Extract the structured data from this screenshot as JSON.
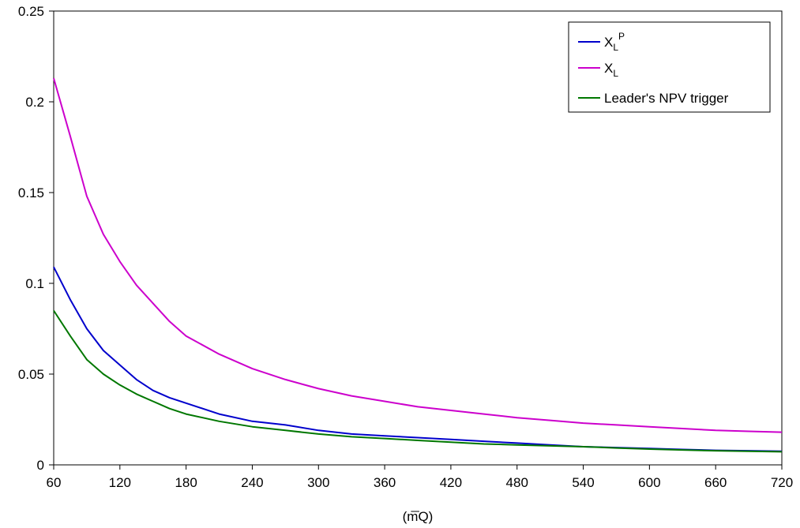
{
  "chart_data": {
    "type": "line",
    "title": "",
    "xlabel": "(mQ)",
    "xlabel_overline": "m",
    "ylabel": "",
    "xlim": [
      60,
      720
    ],
    "ylim": [
      0,
      0.25
    ],
    "x_ticks": [
      "60",
      "120",
      "180",
      "240",
      "300",
      "360",
      "420",
      "480",
      "540",
      "600",
      "660",
      "720"
    ],
    "y_ticks": [
      "0",
      "0.05",
      "0.1",
      "0.15",
      "0.2",
      "0.25"
    ],
    "grid": false,
    "legend_position": "top-right",
    "x": [
      60,
      75,
      90,
      105,
      120,
      135,
      150,
      165,
      180,
      210,
      240,
      270,
      300,
      330,
      360,
      390,
      420,
      450,
      480,
      510,
      540,
      570,
      600,
      630,
      660,
      690,
      720
    ],
    "series": [
      {
        "name_main": "X",
        "name_sub": "L",
        "name_sup": "P",
        "color": "#0000cc",
        "values": [
          0.109,
          0.091,
          0.075,
          0.063,
          0.055,
          0.047,
          0.041,
          0.037,
          0.034,
          0.028,
          0.024,
          0.022,
          0.019,
          0.017,
          0.016,
          0.015,
          0.014,
          0.013,
          0.012,
          0.011,
          0.01,
          0.0095,
          0.009,
          0.0085,
          0.008,
          0.0078,
          0.0075
        ]
      },
      {
        "name_main": "X",
        "name_sub": "L",
        "name_sup": "",
        "color": "#cc00cc",
        "values": [
          0.213,
          0.181,
          0.148,
          0.127,
          0.112,
          0.099,
          0.089,
          0.079,
          0.071,
          0.061,
          0.053,
          0.047,
          0.042,
          0.038,
          0.035,
          0.032,
          0.03,
          0.028,
          0.026,
          0.0245,
          0.023,
          0.022,
          0.021,
          0.02,
          0.019,
          0.0185,
          0.018
        ]
      },
      {
        "name_main": "Leader's NPV trigger",
        "name_sub": "",
        "name_sup": "",
        "color": "#007700",
        "values": [
          0.085,
          0.071,
          0.058,
          0.05,
          0.044,
          0.039,
          0.035,
          0.031,
          0.028,
          0.024,
          0.021,
          0.019,
          0.017,
          0.0155,
          0.0145,
          0.0135,
          0.0125,
          0.0115,
          0.011,
          0.0105,
          0.01,
          0.0093,
          0.0087,
          0.0082,
          0.0078,
          0.0075,
          0.0072
        ]
      }
    ]
  }
}
